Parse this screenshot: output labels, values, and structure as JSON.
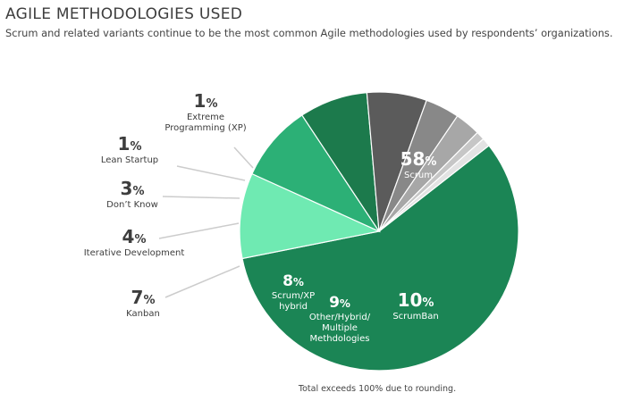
{
  "chart_data": {
    "type": "pie",
    "title": "AGILE METHODOLOGIES USED",
    "subtitle": "Scrum and related variants continue to be the most common Agile methodologies used by respondents’ organizations.",
    "note": "Total exceeds 100% due to rounding.",
    "slices": [
      {
        "label": [
          "Scrum"
        ],
        "value": 58,
        "display": "58",
        "color": "#1b8555",
        "label_inside": true,
        "text_color": "#ffffff"
      },
      {
        "label": [
          "ScrumBan"
        ],
        "value": 10,
        "display": "10",
        "color": "#6feab2",
        "label_inside": true,
        "text_color": "#ffffff"
      },
      {
        "label": [
          "Other/Hybrid/",
          "Multiple",
          "Methdologies"
        ],
        "value": 9,
        "display": "9",
        "color": "#2cb076",
        "label_inside": true,
        "text_color": "#ffffff"
      },
      {
        "label": [
          "Scrum/XP",
          "hybrid"
        ],
        "value": 8,
        "display": "8",
        "color": "#1c7a4c",
        "label_inside": true,
        "text_color": "#ffffff"
      },
      {
        "label": [
          "Kanban"
        ],
        "value": 7,
        "display": "7",
        "color": "#5b5b5b",
        "label_inside": false,
        "text_color": "#3d3d3d"
      },
      {
        "label": [
          "Iterative Development"
        ],
        "value": 4,
        "display": "4",
        "color": "#888888",
        "label_inside": false,
        "text_color": "#3d3d3d"
      },
      {
        "label": [
          "Don’t Know"
        ],
        "value": 3,
        "display": "3",
        "color": "#a7a7a7",
        "label_inside": false,
        "text_color": "#3d3d3d"
      },
      {
        "label": [
          "Lean Startup"
        ],
        "value": 1,
        "display": "1",
        "color": "#c6c6c6",
        "label_inside": false,
        "text_color": "#3d3d3d"
      },
      {
        "label": [
          "Extreme",
          "Programming (XP)"
        ],
        "value": 1,
        "display": "1",
        "color": "#e3e3e3",
        "label_inside": false,
        "text_color": "#3d3d3d"
      }
    ]
  }
}
